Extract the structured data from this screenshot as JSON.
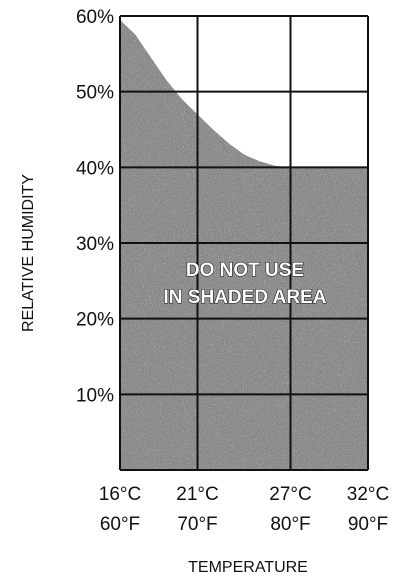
{
  "chart_data": {
    "type": "area",
    "title": "",
    "xlabel": "TEMPERATURE",
    "ylabel": "RELATIVE HUMIDITY",
    "x_ticks": [
      {
        "value": 16,
        "celsius": "16°C",
        "fahrenheit": "60°F"
      },
      {
        "value": 21,
        "celsius": "21°C",
        "fahrenheit": "70°F"
      },
      {
        "value": 27,
        "celsius": "27°C",
        "fahrenheit": "80°F"
      },
      {
        "value": 32,
        "celsius": "32°C",
        "fahrenheit": "90°F"
      }
    ],
    "y_ticks": [
      {
        "value": 10,
        "label": "10%"
      },
      {
        "value": 20,
        "label": "20%"
      },
      {
        "value": 30,
        "label": "30%"
      },
      {
        "value": 40,
        "label": "40%"
      },
      {
        "value": 50,
        "label": "50%"
      },
      {
        "value": 60,
        "label": "60%"
      }
    ],
    "xlim": [
      16,
      32
    ],
    "ylim": [
      0,
      60
    ],
    "grid": true,
    "boundary": {
      "x": [
        16,
        17,
        18,
        19,
        20,
        21,
        22,
        23,
        24,
        25,
        26,
        27,
        28,
        29,
        30,
        31,
        32
      ],
      "y": [
        59.5,
        57.5,
        54.5,
        51.5,
        49,
        47,
        45,
        43.2,
        41.7,
        40.8,
        40.2,
        40,
        40,
        40,
        40,
        40,
        40
      ]
    },
    "shaded_region": "below boundary",
    "annotation": [
      "DO NOT USE",
      "IN SHADED AREA"
    ],
    "colors": {
      "shade": "#8a8a8a",
      "grid": "#111111",
      "background": "#ffffff"
    }
  }
}
